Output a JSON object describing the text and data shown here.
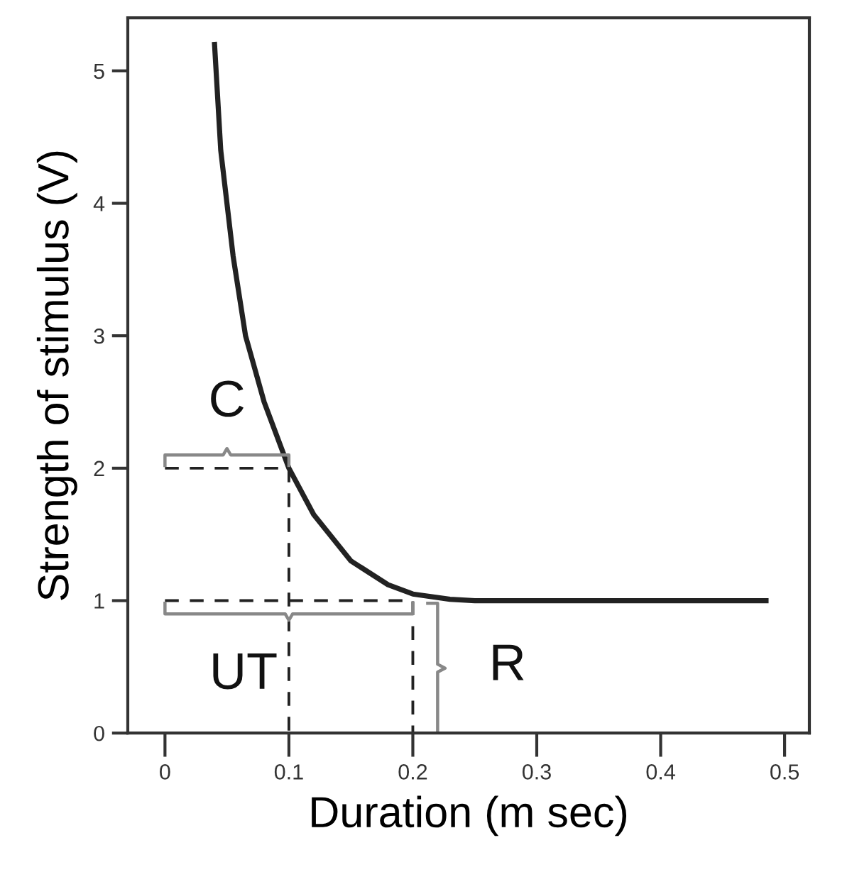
{
  "chart_data": {
    "type": "line",
    "xlabel": "Duration (m sec)",
    "ylabel": "Strength of stimulus (V)",
    "xlim": [
      -0.03,
      0.52
    ],
    "ylim": [
      0,
      5.4
    ],
    "xticks": [
      0,
      0.1,
      0.2,
      0.3,
      0.4,
      0.5
    ],
    "yticks": [
      0,
      1,
      2,
      3,
      4,
      5
    ],
    "grid": false,
    "legend": false,
    "marker": "none",
    "series": [
      {
        "color": "#222222",
        "line_style": "solid",
        "x": [
          0.04,
          0.045,
          0.055,
          0.065,
          0.08,
          0.1,
          0.12,
          0.15,
          0.18,
          0.2,
          0.23,
          0.25,
          0.3,
          0.4,
          0.485
        ],
        "values": [
          5.2,
          4.4,
          3.6,
          3.0,
          2.5,
          2.0,
          1.65,
          1.3,
          1.12,
          1.05,
          1.01,
          1.0,
          1.0,
          1.0,
          1.0
        ]
      },
      {
        "color": "#222222",
        "line_style": "dashed",
        "x": [
          0,
          0.1,
          0.1
        ],
        "values": [
          2,
          2,
          0
        ]
      },
      {
        "color": "#222222",
        "line_style": "dashed",
        "x": [
          0,
          0.2,
          0.2
        ],
        "values": [
          1,
          1,
          0
        ]
      }
    ],
    "annotations": [
      {
        "text": "C",
        "x": 0.05,
        "y": 2
      },
      {
        "text": "UT",
        "x": 0.1,
        "y": 1
      },
      {
        "text": "R",
        "x": 0.2,
        "y": 0.5
      }
    ]
  }
}
